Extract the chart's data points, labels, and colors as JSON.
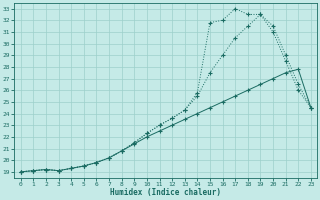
{
  "xlabel": "Humidex (Indice chaleur)",
  "background_color": "#c5eae7",
  "grid_color": "#9dd0cb",
  "line_color": "#1a6b62",
  "xlim": [
    -0.5,
    23.5
  ],
  "ylim": [
    18.5,
    33.5
  ],
  "xticks": [
    0,
    1,
    2,
    3,
    4,
    5,
    6,
    7,
    8,
    9,
    10,
    11,
    12,
    13,
    14,
    15,
    16,
    17,
    18,
    19,
    20,
    21,
    22,
    23
  ],
  "yticks": [
    19,
    20,
    21,
    22,
    23,
    24,
    25,
    26,
    27,
    28,
    29,
    30,
    31,
    32,
    33
  ],
  "line1_x": [
    0,
    1,
    2,
    3,
    4,
    5,
    6,
    7,
    8,
    9,
    10,
    11,
    12,
    13,
    14,
    15,
    16,
    17,
    18,
    19,
    20,
    21,
    22,
    23
  ],
  "line1_y": [
    19.0,
    19.1,
    19.2,
    19.1,
    19.3,
    19.5,
    19.8,
    20.2,
    20.8,
    21.4,
    22.0,
    22.5,
    23.0,
    23.5,
    24.0,
    24.5,
    25.0,
    25.5,
    26.0,
    26.5,
    27.0,
    27.5,
    27.8,
    24.5
  ],
  "line2_x": [
    0,
    1,
    2,
    3,
    4,
    5,
    6,
    7,
    8,
    9,
    10,
    11,
    12,
    13,
    14,
    15,
    16,
    17,
    18,
    19,
    20,
    21,
    22,
    23
  ],
  "line2_y": [
    19.0,
    19.1,
    19.2,
    19.1,
    19.3,
    19.5,
    19.8,
    20.2,
    20.8,
    21.5,
    22.3,
    23.0,
    23.6,
    24.3,
    25.5,
    27.5,
    29.0,
    30.5,
    31.5,
    32.5,
    31.0,
    28.5,
    26.0,
    24.5
  ],
  "line3_x": [
    0,
    1,
    2,
    3,
    4,
    5,
    6,
    7,
    8,
    9,
    10,
    11,
    12,
    13,
    14,
    15,
    16,
    17,
    18,
    19,
    20,
    21,
    22,
    23
  ],
  "line3_y": [
    19.0,
    19.1,
    19.2,
    19.1,
    19.3,
    19.5,
    19.8,
    20.2,
    20.8,
    21.5,
    22.3,
    23.0,
    23.6,
    24.3,
    25.8,
    31.8,
    32.0,
    33.0,
    32.5,
    32.5,
    31.5,
    29.0,
    26.5,
    24.5
  ],
  "marker_style": "+",
  "line1_style": "-",
  "line23_style": "--"
}
